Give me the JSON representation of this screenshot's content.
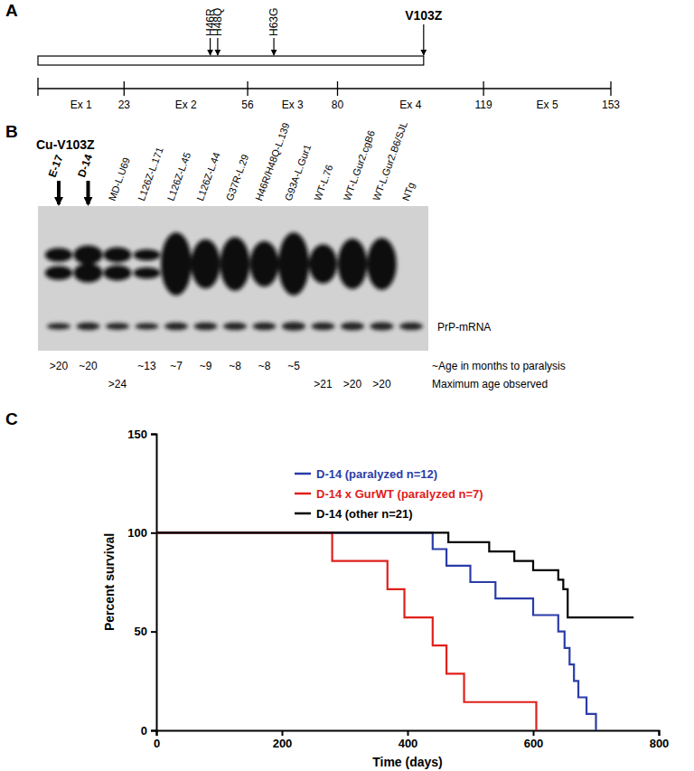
{
  "panel_labels": [
    "A",
    "B",
    "C"
  ],
  "gene_diagram": {
    "xlim": [
      0,
      153
    ],
    "boundaries": [
      23,
      56,
      80,
      119,
      153
    ],
    "exons": [
      "Ex 1",
      "Ex 2",
      "Ex 3",
      "Ex 4",
      "Ex 5"
    ],
    "construct": {
      "label": "V103Z",
      "end": 103
    },
    "mutations": [
      {
        "label": "H46R",
        "position": 46
      },
      {
        "label": "H48Q",
        "position": 48
      },
      {
        "label": "H63G",
        "position": 63
      }
    ]
  },
  "blot": {
    "group_label": "Cu-V103Z",
    "band_label": "PrP-mRNA",
    "row_labels": [
      "~Age in months to paralysis",
      "Maximum age observed"
    ],
    "lanes": [
      {
        "label": "E-17",
        "highlight": true,
        "sod1_signal": 55,
        "doublet": true,
        "prp_signal": 30,
        "paralysis_age": ">20",
        "max_age": null
      },
      {
        "label": "D-14",
        "highlight": true,
        "sod1_signal": 75,
        "doublet": true,
        "prp_signal": 35,
        "paralysis_age": "~20",
        "max_age": null
      },
      {
        "label": "MD-L.U69",
        "highlight": false,
        "sod1_signal": 60,
        "doublet": true,
        "prp_signal": 32,
        "paralysis_age": null,
        "max_age": ">24"
      },
      {
        "label": "L126Z-L.171",
        "highlight": false,
        "sod1_signal": 45,
        "doublet": true,
        "prp_signal": 30,
        "paralysis_age": "~13",
        "max_age": null
      },
      {
        "label": "L126Z-L.45",
        "highlight": false,
        "sod1_signal": 100,
        "doublet": false,
        "prp_signal": 35,
        "paralysis_age": "~7",
        "max_age": null
      },
      {
        "label": "L126Z-L.44",
        "highlight": false,
        "sod1_signal": 78,
        "doublet": false,
        "prp_signal": 35,
        "paralysis_age": "~9",
        "max_age": null
      },
      {
        "label": "G37R-L.29",
        "highlight": false,
        "sod1_signal": 85,
        "doublet": false,
        "prp_signal": 35,
        "paralysis_age": "~8",
        "max_age": null
      },
      {
        "label": "H46R/H48Q-L.139",
        "highlight": false,
        "sod1_signal": 72,
        "doublet": false,
        "prp_signal": 35,
        "paralysis_age": "~8",
        "max_age": null
      },
      {
        "label": "G93A-L.Gur1",
        "highlight": false,
        "sod1_signal": 100,
        "doublet": false,
        "prp_signal": 40,
        "paralysis_age": "~5",
        "max_age": null
      },
      {
        "label": "WT-L.76",
        "highlight": false,
        "sod1_signal": 62,
        "doublet": false,
        "prp_signal": 35,
        "paralysis_age": null,
        "max_age": ">21"
      },
      {
        "label": "WT-L.Gur2.cgB6",
        "highlight": false,
        "sod1_signal": 80,
        "doublet": false,
        "prp_signal": 38,
        "paralysis_age": null,
        "max_age": ">20"
      },
      {
        "label": "WT-L.Gur2.B6/SJL",
        "highlight": false,
        "sod1_signal": 82,
        "doublet": false,
        "prp_signal": 38,
        "paralysis_age": null,
        "max_age": ">20"
      },
      {
        "label": "NTg",
        "highlight": false,
        "sod1_signal": 0,
        "doublet": false,
        "prp_signal": 35,
        "paralysis_age": null,
        "max_age": null
      }
    ]
  },
  "chart_data": {
    "type": "line",
    "xlabel": "Time (days)",
    "ylabel": "Percent survival",
    "xlim": [
      0,
      800
    ],
    "ylim": [
      0,
      150
    ],
    "xticks": [
      0,
      200,
      400,
      600,
      800
    ],
    "yticks": [
      0,
      50,
      100,
      150
    ],
    "series": [
      {
        "name": "D-14 (paralyzed n=12)",
        "color": "#2a3ca8",
        "line_style": "step",
        "x": [
          0,
          440,
          462,
          500,
          540,
          600,
          640,
          650,
          658,
          665,
          672,
          685,
          700
        ],
        "values": [
          100,
          91.7,
          83.3,
          75,
          66.7,
          58.3,
          50,
          41.7,
          33.3,
          25,
          16.7,
          8.3,
          0
        ]
      },
      {
        "name": "D-14 x GurWT (paralyzed n=7)",
        "color": "#e0201b",
        "line_style": "step",
        "x": [
          0,
          280,
          368,
          395,
          440,
          462,
          490,
          605
        ],
        "values": [
          100,
          85.7,
          71.4,
          57.1,
          42.9,
          28.6,
          14.3,
          0
        ]
      },
      {
        "name": "D-14 (other n=21)",
        "color": "#000000",
        "line_style": "step",
        "x": [
          0,
          465,
          530,
          570,
          600,
          640,
          648,
          655,
          760
        ],
        "values": [
          100,
          95.2,
          90.5,
          85.7,
          81,
          76.2,
          71.4,
          57.1,
          57.1
        ]
      }
    ]
  }
}
